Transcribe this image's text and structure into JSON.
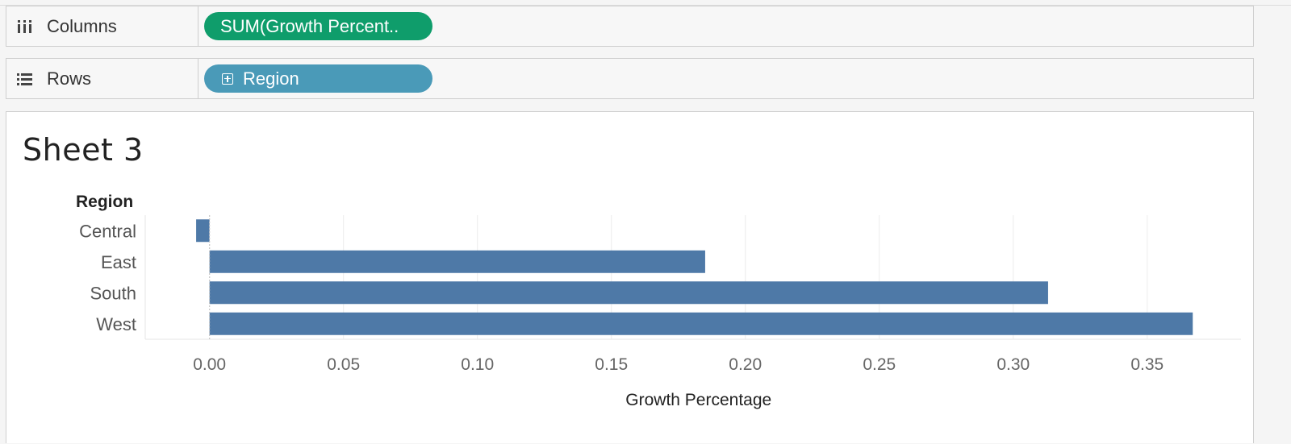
{
  "shelves": {
    "columns": {
      "label": "Columns",
      "pill": "SUM(Growth Percent..",
      "icon": "columns-icon"
    },
    "rows": {
      "label": "Rows",
      "pill": "Region",
      "icon": "rows-icon"
    }
  },
  "sheet": {
    "title": "Sheet 3",
    "row_header": "Region"
  },
  "colors": {
    "bar": "#4e79a7",
    "columns_pill": "#0f9d6b",
    "rows_pill": "#4a9ab8"
  },
  "chart_data": {
    "type": "bar",
    "orientation": "horizontal",
    "categories": [
      "Central",
      "East",
      "South",
      "West"
    ],
    "values": [
      -0.005,
      0.185,
      0.313,
      0.367
    ],
    "xlabel": "Growth Percentage",
    "ylabel": "Region",
    "xlim": [
      -0.024,
      0.385
    ],
    "xticks": [
      "0.00",
      "0.05",
      "0.10",
      "0.15",
      "0.20",
      "0.25",
      "0.30",
      "0.35"
    ],
    "xtick_values": [
      0,
      0.05,
      0.1,
      0.15,
      0.2,
      0.25,
      0.3,
      0.35
    ],
    "grid": true
  }
}
